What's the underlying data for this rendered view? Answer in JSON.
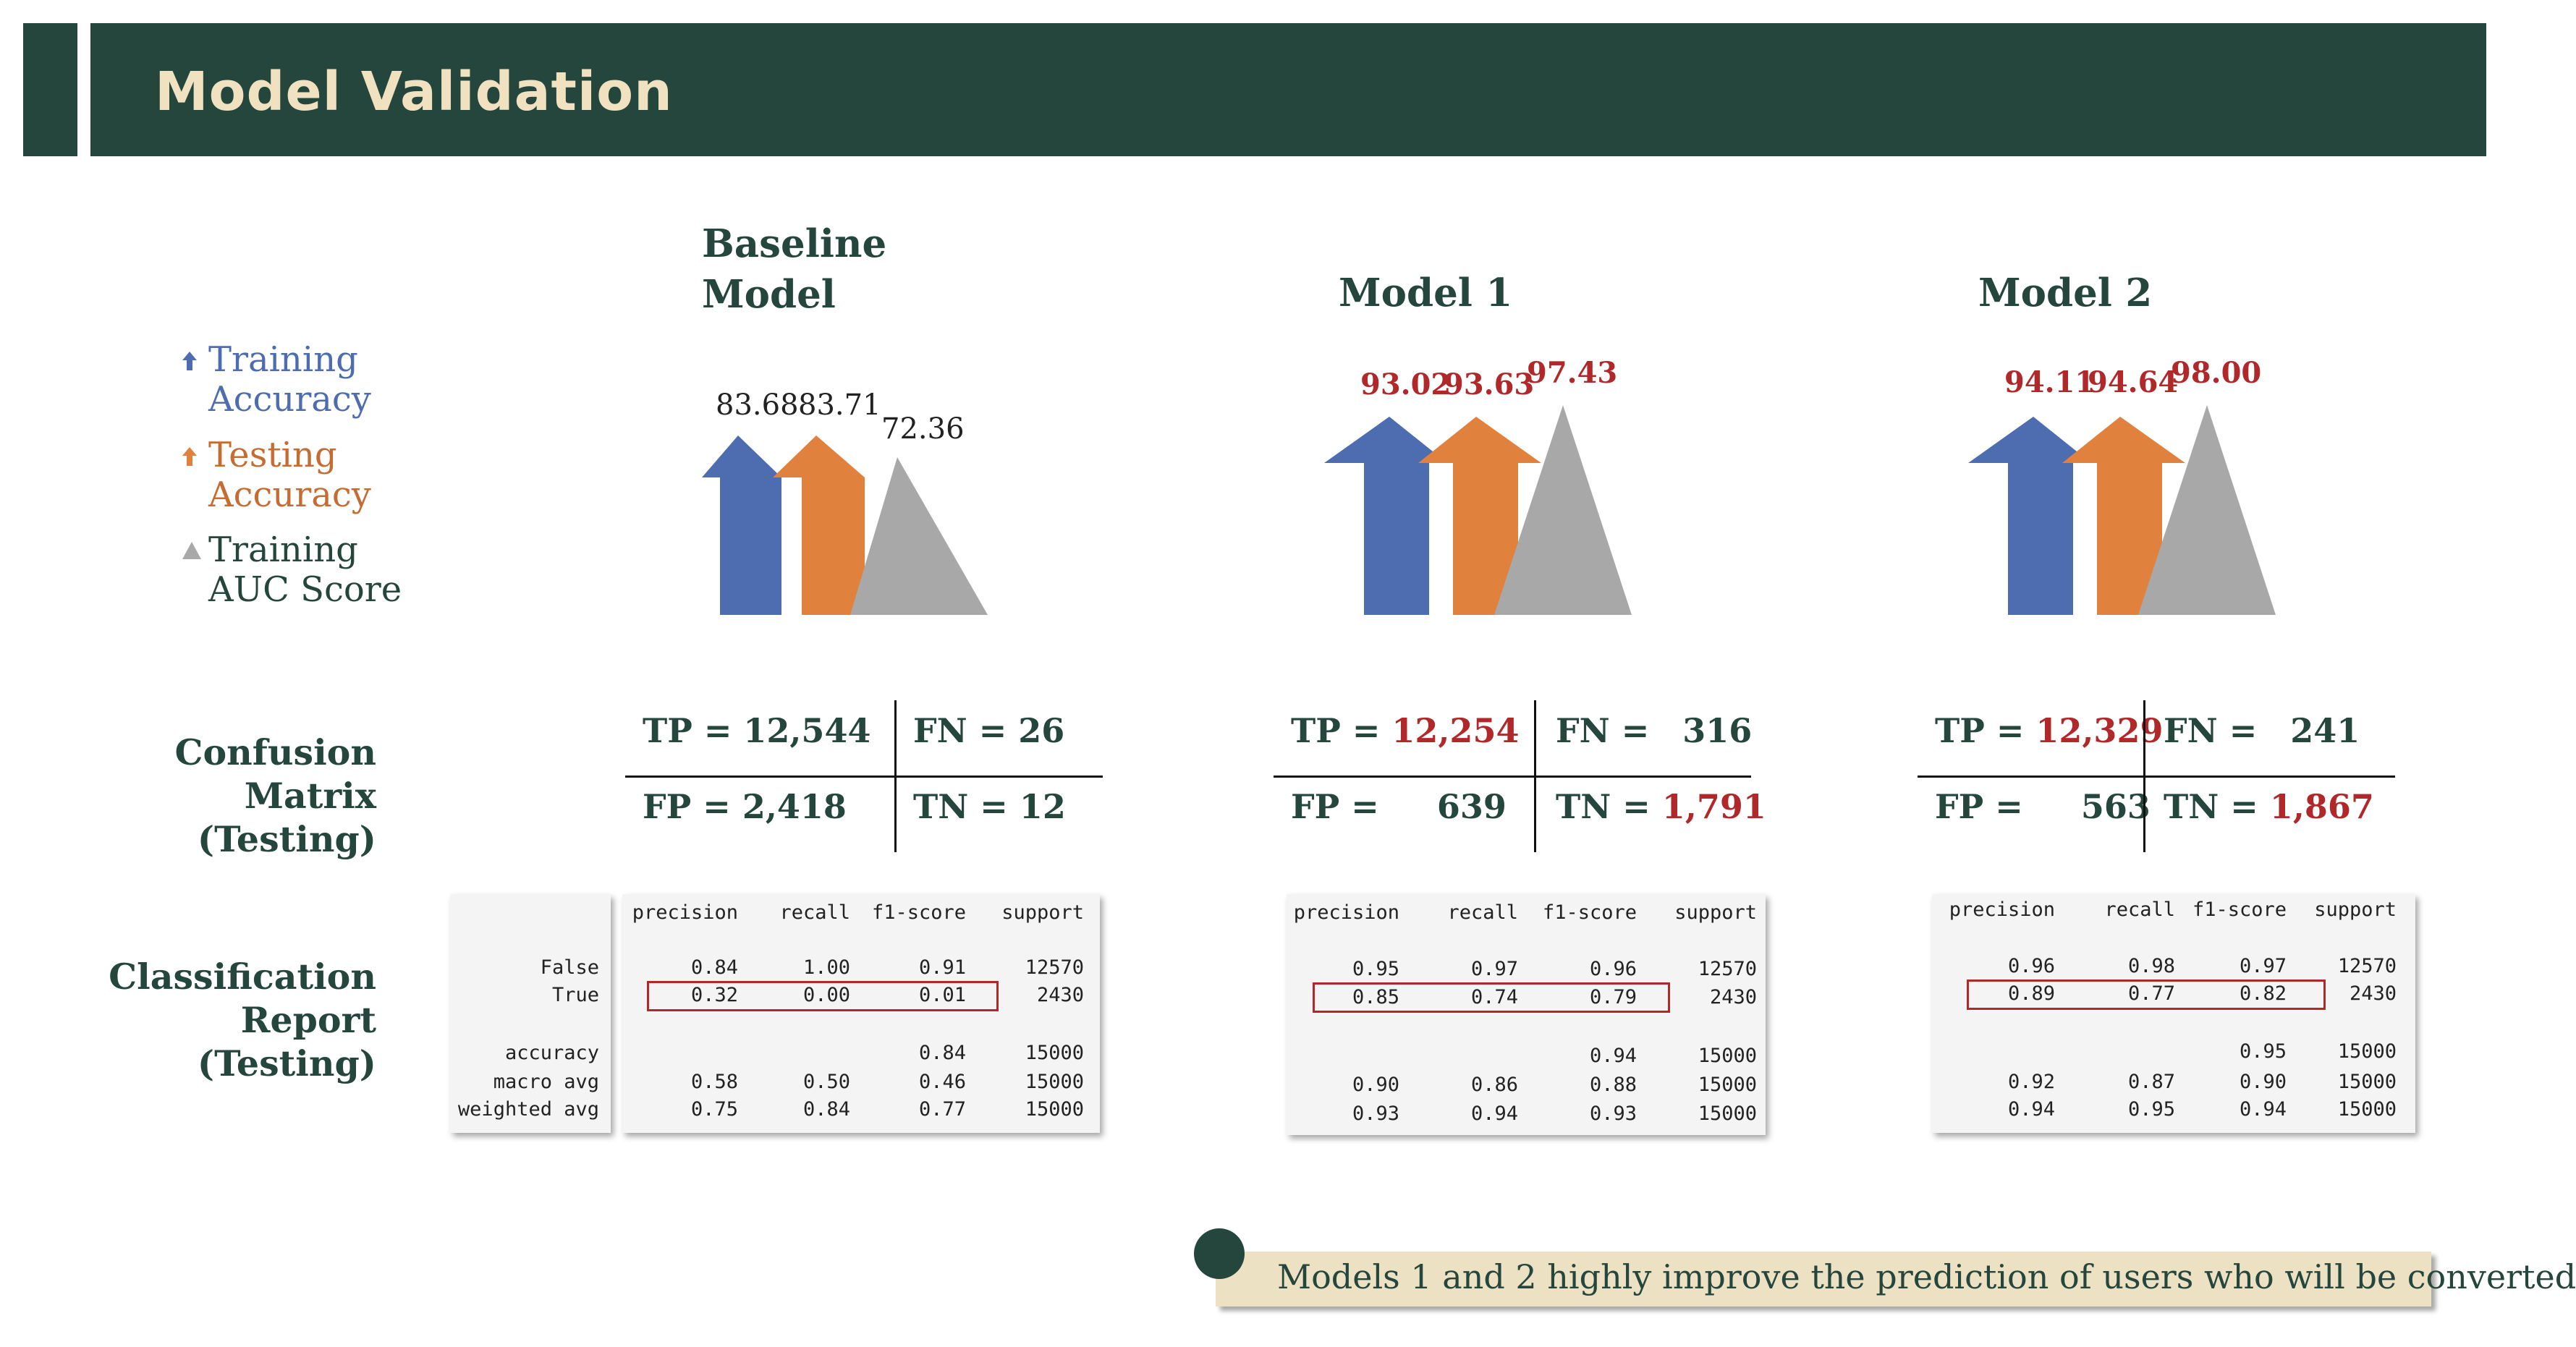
{
  "title": "Model Validation",
  "legend": {
    "training_accuracy": [
      "Training",
      "Accuracy"
    ],
    "testing_accuracy": [
      "Testing",
      "Accuracy"
    ],
    "training_auc": [
      "Training",
      "AUC Score"
    ]
  },
  "row_titles": {
    "confusion": [
      "Confusion",
      "Matrix",
      "(Testing)"
    ],
    "report": [
      "Classification",
      "Report",
      "(Testing)"
    ]
  },
  "colors": {
    "train": "#4e6db1",
    "test": "#e0823e",
    "auc": "#a8a8a8",
    "highlight": "#b0282a",
    "dark": "#25463c"
  },
  "models": [
    {
      "name": [
        "Baseline",
        "Model"
      ],
      "scores": {
        "train": "83.68",
        "test": "83.71",
        "auc": "72.36"
      },
      "cm": {
        "tp_label": "TP = ",
        "tp": "12,544",
        "fn_label": "FN = ",
        "fn": "26",
        "fp_label": "FP = ",
        "fp": "2,418",
        "tn_label": "TN = ",
        "tn": "12"
      },
      "report": {
        "headers": [
          "precision",
          "recall",
          "f1-score",
          "support"
        ],
        "false": [
          "0.84",
          "1.00",
          "0.91",
          "12570"
        ],
        "true": [
          "0.32",
          "0.00",
          "0.01",
          "2430"
        ],
        "accuracy": [
          "0.84",
          "15000"
        ],
        "macro": [
          "0.58",
          "0.50",
          "0.46",
          "15000"
        ],
        "weighted": [
          "0.75",
          "0.84",
          "0.77",
          "15000"
        ],
        "row_labels": [
          "False",
          "True",
          "accuracy",
          "macro avg",
          "weighted avg"
        ]
      }
    },
    {
      "name": [
        "Model 1"
      ],
      "scores": {
        "train": "93.02",
        "test": "93.63",
        "auc": "97.43"
      },
      "cm": {
        "tp_label": "TP = ",
        "tp": "12,254",
        "fn_label": "FN = ",
        "fn": "316",
        "fp_label": "FP = ",
        "fp": "639",
        "tn_label": "TN = ",
        "tn": "1,791"
      },
      "report": {
        "headers": [
          "precision",
          "recall",
          "f1-score",
          "support"
        ],
        "false": [
          "0.95",
          "0.97",
          "0.96",
          "12570"
        ],
        "true": [
          "0.85",
          "0.74",
          "0.79",
          "2430"
        ],
        "accuracy": [
          "0.94",
          "15000"
        ],
        "macro": [
          "0.90",
          "0.86",
          "0.88",
          "15000"
        ],
        "weighted": [
          "0.93",
          "0.94",
          "0.93",
          "15000"
        ]
      }
    },
    {
      "name": [
        "Model 2"
      ],
      "scores": {
        "train": "94.11",
        "test": "94.64",
        "auc": "98.00"
      },
      "cm": {
        "tp_label": "TP = ",
        "tp": "12,329",
        "fn_label": "FN = ",
        "fn": "241",
        "fp_label": "FP = ",
        "fp": "563",
        "tn_label": "TN = ",
        "tn": "1,867"
      },
      "report": {
        "headers": [
          "precision",
          "recall",
          "f1-score",
          "support"
        ],
        "false": [
          "0.96",
          "0.98",
          "0.97",
          "12570"
        ],
        "true": [
          "0.89",
          "0.77",
          "0.82",
          "2430"
        ],
        "accuracy": [
          "0.95",
          "15000"
        ],
        "macro": [
          "0.92",
          "0.87",
          "0.90",
          "15000"
        ],
        "weighted": [
          "0.94",
          "0.95",
          "0.94",
          "15000"
        ]
      }
    }
  ],
  "note": "Models 1 and 2 highly improve the prediction of users who will be converted"
}
